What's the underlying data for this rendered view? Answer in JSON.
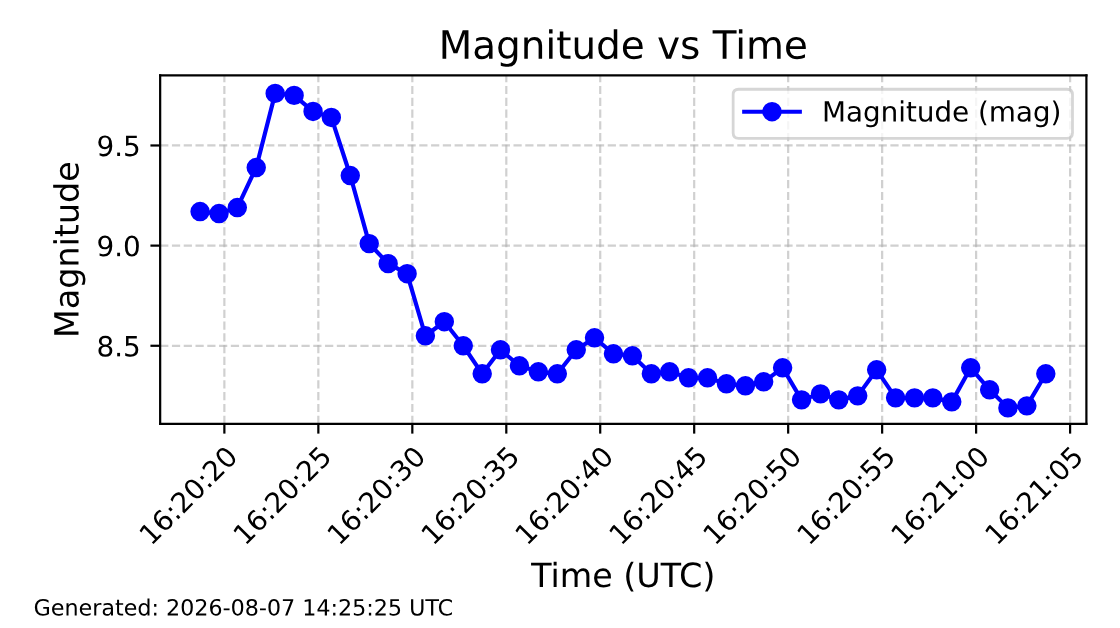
{
  "chart_data": {
    "type": "line",
    "title": "Magnitude vs Time",
    "xlabel": "Time (UTC)",
    "ylabel": "Magnitude",
    "x": [
      16.33853,
      16.33881,
      16.33908,
      16.33936,
      16.33964,
      16.33992,
      16.3402,
      16.34047,
      16.34075,
      16.34103,
      16.34131,
      16.34159,
      16.34186,
      16.34214,
      16.34242,
      16.3427,
      16.34297,
      16.34325,
      16.34353,
      16.34381,
      16.34409,
      16.34436,
      16.34464,
      16.34492,
      16.3452,
      16.34547,
      16.34575,
      16.34603,
      16.34631,
      16.34659,
      16.34686,
      16.34714,
      16.34742,
      16.3477,
      16.34797,
      16.34825,
      16.34853,
      16.34881,
      16.34909,
      16.34936,
      16.34964,
      16.34992,
      16.3502,
      16.35047,
      16.35075,
      16.35103
    ],
    "series": [
      {
        "name": "Magnitude (mag)",
        "color": "#0000ff",
        "values": [
          9.17,
          9.16,
          9.19,
          9.39,
          9.76,
          9.75,
          9.67,
          9.64,
          9.35,
          9.01,
          8.91,
          8.86,
          8.55,
          8.62,
          8.5,
          8.36,
          8.48,
          8.4,
          8.37,
          8.36,
          8.48,
          8.54,
          8.46,
          8.45,
          8.36,
          8.37,
          8.34,
          8.34,
          8.31,
          8.3,
          8.32,
          8.39,
          8.23,
          8.26,
          8.23,
          8.25,
          8.38,
          8.24,
          8.24,
          8.24,
          8.22,
          8.39,
          8.28,
          8.19,
          8.2,
          8.36
        ]
      }
    ],
    "xlim": [
      16.33794,
      16.35163
    ],
    "ylim": [
      8.11,
      9.85
    ],
    "xticks": [
      {
        "value": 16.338889,
        "label": "16:20:20"
      },
      {
        "value": 16.340278,
        "label": "16:20:25"
      },
      {
        "value": 16.341667,
        "label": "16:20:30"
      },
      {
        "value": 16.343056,
        "label": "16:20:35"
      },
      {
        "value": 16.344444,
        "label": "16:20:40"
      },
      {
        "value": 16.345833,
        "label": "16:20:45"
      },
      {
        "value": 16.347222,
        "label": "16:20:50"
      },
      {
        "value": 16.348611,
        "label": "16:20:55"
      },
      {
        "value": 16.35,
        "label": "16:21:00"
      },
      {
        "value": 16.351389,
        "label": "16:21:05"
      }
    ],
    "yticks": [
      {
        "value": 8.5,
        "label": "8.5"
      },
      {
        "value": 9.0,
        "label": "9.0"
      },
      {
        "value": 9.5,
        "label": "9.5"
      }
    ],
    "grid": true,
    "legend": "top right",
    "marker": "circle",
    "line_style": "solid",
    "annotations": [
      "Generated: 2026-08-07 14:25:25 UTC"
    ]
  }
}
